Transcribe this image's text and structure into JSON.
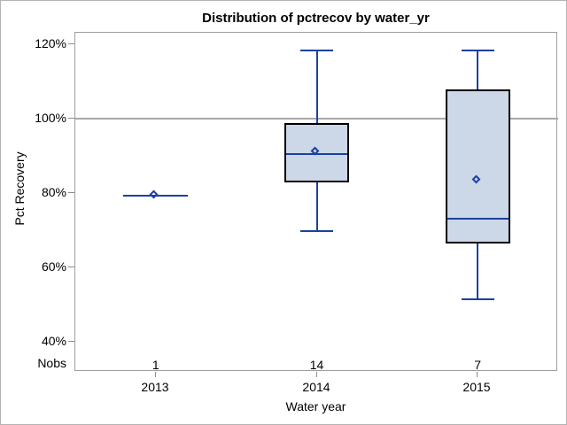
{
  "chart_data": {
    "type": "box",
    "title": "Distribution of pctrecov by water_yr",
    "xlabel": "Water year",
    "ylabel": "Pct Recovery",
    "categories": [
      "2013",
      "2014",
      "2015"
    ],
    "nobs_label": "Nobs",
    "nobs": [
      "1",
      "14",
      "7"
    ],
    "y_ticks": [
      120,
      100,
      80,
      60,
      40
    ],
    "y_tick_labels": [
      "120%",
      "100%",
      "80%",
      "60%",
      "40%"
    ],
    "ylim": [
      32,
      123
    ],
    "refline": 100,
    "grid": "off",
    "legend": "none",
    "boxes": [
      {
        "category": "2013",
        "n": 1,
        "min": 79.3,
        "q1": 79.3,
        "median": 79.3,
        "q3": 79.3,
        "max": 79.3,
        "mean": 79.3
      },
      {
        "category": "2014",
        "n": 14,
        "min": 69.8,
        "q1": 82.9,
        "median": 90.5,
        "q3": 98.8,
        "max": 118.4,
        "mean": 90.9
      },
      {
        "category": "2015",
        "n": 7,
        "min": 51.4,
        "q1": 66.4,
        "median": 73.1,
        "q3": 107.8,
        "max": 118.4,
        "mean": 83.3
      }
    ]
  },
  "colors": {
    "line": "#1a41a0",
    "box_fill": "#ccd7e7",
    "box_border": "#000000",
    "refline": "#a9a9a9",
    "frame": "#9e9e9e",
    "tick": "#8c8c8c",
    "text": "#000000",
    "background": "#ffffff",
    "outer_border": "#b4b4b4"
  }
}
